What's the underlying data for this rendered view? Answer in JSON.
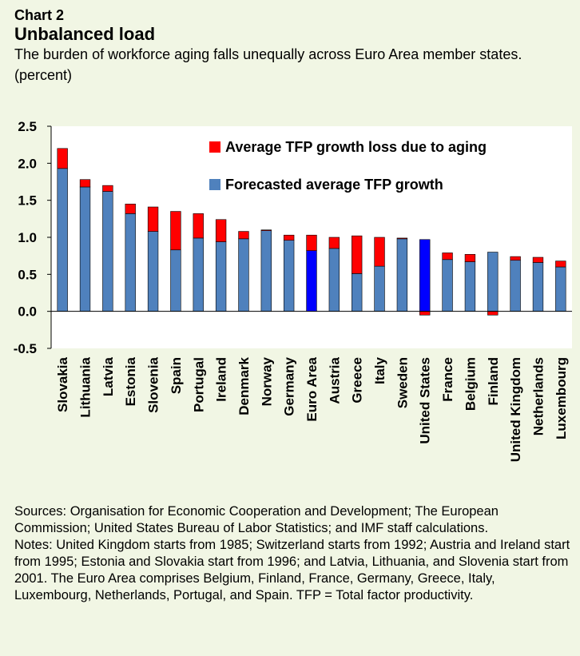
{
  "header": {
    "label": "Chart 2",
    "title": "Unbalanced load",
    "subtitle": "The burden of workforce aging falls unequally across Euro Area member states.",
    "unit": "(percent)"
  },
  "footer": {
    "sources": "Sources: Organisation for Economic Cooperation and Development; The European Commission; United States Bureau of Labor Statistics; and IMF staff calculations.",
    "notes": "Notes: United Kingdom starts from 1985; Switzerland starts from 1992; Austria and Ireland start from 1995; Estonia and Slovakia start from 1996; and Latvia, Lithuania, and Slovenia start from 2001. The Euro Area comprises Belgium, Finland, France, Germany, Greece, Italy, Luxembourg, Netherlands, Portugal, and Spain. TFP = Total factor productivity."
  },
  "chart_data": {
    "type": "bar",
    "stacked": true,
    "title": "Unbalanced load",
    "ylabel": "(percent)",
    "ylim": [
      -0.5,
      2.5
    ],
    "yticks": [
      "2.5",
      "2.0",
      "1.5",
      "1.0",
      "0.5",
      "0.0",
      "-0.5"
    ],
    "ytick_values": [
      2.5,
      2.0,
      1.5,
      1.0,
      0.5,
      0.0,
      -0.5
    ],
    "grid": false,
    "legend_position": "top-right",
    "categories": [
      "Slovakia",
      "Lithuania",
      "Latvia",
      "Estonia",
      "Slovenia",
      "Spain",
      "Portugal",
      "Ireland",
      "Denmark",
      "Norway",
      "Germany",
      "Euro Area",
      "Austria",
      "Greece",
      "Italy",
      "Sweden",
      "United States",
      "France",
      "Belgium",
      "Finland",
      "United Kingdom",
      "Netherlands",
      "Luxembourg"
    ],
    "series": [
      {
        "name": "Average TFP growth loss due to aging",
        "color": "#ff0000",
        "values": [
          0.27,
          0.1,
          0.08,
          0.13,
          0.33,
          0.52,
          0.33,
          0.3,
          0.1,
          0.01,
          0.07,
          0.21,
          0.15,
          0.51,
          0.39,
          0.01,
          0.0,
          0.09,
          0.1,
          0.0,
          0.05,
          0.07,
          0.08
        ]
      },
      {
        "name": "Forecasted average TFP growth",
        "color": "#4f81bd",
        "values": [
          1.93,
          1.68,
          1.62,
          1.32,
          1.08,
          0.83,
          0.99,
          0.94,
          0.98,
          1.09,
          0.96,
          0.82,
          0.85,
          0.51,
          0.61,
          0.98,
          0.97,
          0.7,
          0.67,
          0.8,
          0.69,
          0.66,
          0.6
        ]
      },
      {
        "name": "",
        "color": "#ff0000",
        "values": [
          0,
          0,
          0,
          0,
          0,
          0,
          0,
          0,
          0,
          0,
          0,
          0,
          0,
          0,
          0,
          0,
          -0.05,
          0,
          0,
          -0.05,
          0,
          0,
          0
        ]
      }
    ],
    "highlight": [
      "Euro Area",
      "United States"
    ],
    "highlight_color": "#0000ff",
    "colors": {
      "loss": "#ff0000",
      "forecast": "#4f81bd",
      "highlight": "#0000ff",
      "background": "#f1f6e4"
    }
  }
}
